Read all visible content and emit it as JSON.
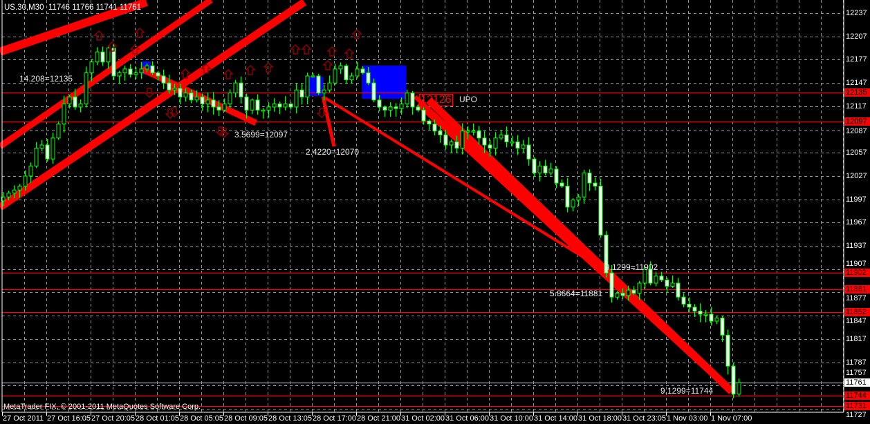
{
  "header": {
    "symbol": "US.30,M30",
    "ohlc": "11746 11766 11741 11761"
  },
  "footer": {
    "copyright": "MetaTrader FIX, © 2001-2011 MetaQuotes Software Corp."
  },
  "colors": {
    "background": "#000000",
    "grid": "#8a96a6",
    "candle_wick": "#00ff00",
    "bear_body": "#ffffff",
    "bull_body": "#000000",
    "levels": "#ff0000",
    "bands": "#ff0000",
    "zones": "#0000ff",
    "arrows": "#8b0000"
  },
  "annotations": {
    "a1": "14.208=12135",
    "a2": "3.5699=12097",
    "a3": "2.4220=12070",
    "a4": "12126",
    "a5": "UPO",
    "a6": "9.1299=11902",
    "a7": "5.8664=11881",
    "a8": "9.1299=11744"
  },
  "chart_data": {
    "type": "candlestick",
    "timeframe": "M30",
    "ylim": [
      11727,
      12237
    ],
    "grid": true,
    "y_ticks": [
      "12237",
      "12207",
      "12177",
      "12147",
      "12117",
      "12087",
      "12057",
      "12027",
      "11997",
      "11967",
      "11937",
      "11907",
      "11877",
      "11847",
      "11817",
      "11787",
      "11757",
      "11727"
    ],
    "x_ticks": [
      "27 Oct 2011",
      "27 Oct 16:05",
      "27 Oct 20:05",
      "28 Oct 01:05",
      "28 Oct 05:05",
      "28 Oct 09:05",
      "28 Oct 13:05",
      "28 Oct 17:00",
      "28 Oct 21:00",
      "31 Oct 02:00",
      "31 Oct 06:00",
      "31 Oct 10:00",
      "31 Oct 14:00",
      "31 Oct 18:00",
      "31 Oct 23:05",
      "1 Nov 03:00",
      "1 Nov 07:00"
    ],
    "levels": [
      {
        "price": "12135",
        "style": "red"
      },
      {
        "price": "12097",
        "style": "red"
      },
      {
        "price": "11902",
        "style": "red"
      },
      {
        "price": "11881",
        "style": "red"
      },
      {
        "price": "11852",
        "style": "red"
      },
      {
        "price": "11761",
        "style": "current"
      },
      {
        "price": "11744",
        "style": "red"
      },
      {
        "price": "11731",
        "style": "red"
      }
    ],
    "closes": [
      12000,
      12005,
      12009,
      12014,
      12027,
      12040,
      12063,
      12067,
      12049,
      12076,
      12094,
      12120,
      12129,
      12116,
      12120,
      12160,
      12174,
      12187,
      12174,
      12192,
      12156,
      12160,
      12165,
      12158,
      12160,
      12165,
      12169,
      12160,
      12156,
      12147,
      12138,
      12140,
      12129,
      12134,
      12125,
      12129,
      12120,
      12125,
      12116,
      12112,
      12120,
      12134,
      12147,
      12129,
      12112,
      12125,
      12112,
      12112,
      12116,
      12120,
      12116,
      12120,
      12116,
      12138,
      12129,
      12156,
      12156,
      12134,
      12138,
      12147,
      12165,
      12169,
      12151,
      12156,
      12165,
      12160,
      12147,
      12125,
      12116,
      12112,
      12116,
      12114,
      12120,
      12134,
      12116,
      12112,
      12098,
      12094,
      12085,
      12080,
      12067,
      12071,
      12063,
      12085,
      12085,
      12085,
      12076,
      12067,
      12063,
      12076,
      12080,
      12071,
      12071,
      12063,
      12067,
      12049,
      12031,
      12040,
      12031,
      12036,
      12018,
      12014,
      11987,
      11996,
      12000,
      12031,
      12018,
      12014,
      11951,
      11902,
      11871,
      11876,
      11873,
      11880,
      11876,
      11889,
      11907,
      11889,
      11898,
      11893,
      11885,
      11889,
      11871,
      11862,
      11858,
      11853,
      11849,
      11849,
      11840,
      11844,
      11822,
      11782,
      11746,
      11761
    ]
  }
}
